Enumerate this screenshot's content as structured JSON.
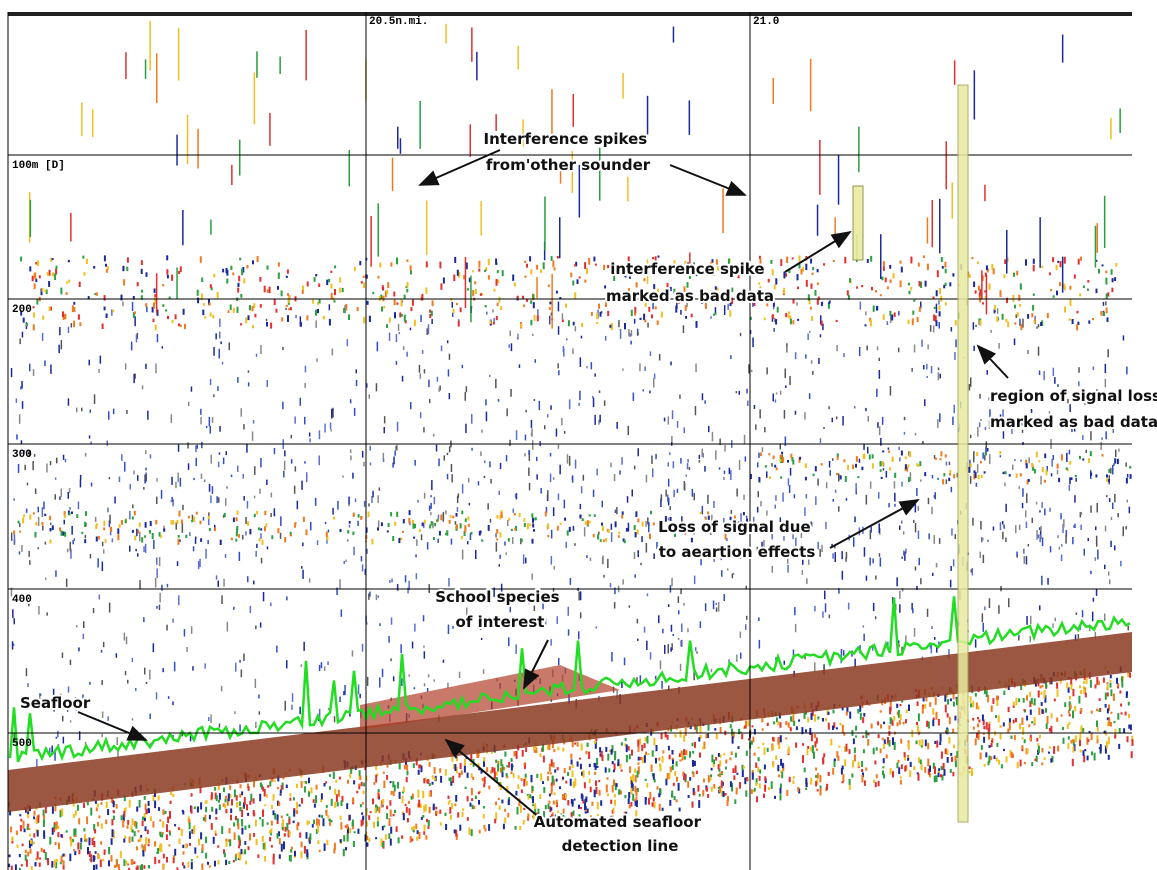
{
  "axis_labels": {
    "top": [
      "20.5n.mi.",
      "21.0"
    ],
    "depth": [
      "100m [D]",
      "200",
      "300",
      "400",
      "500"
    ]
  },
  "annotations": [
    {
      "lines": [
        "Interference spikes",
        "from'other sounder"
      ]
    },
    {
      "lines": [
        "interference spike",
        "marked as bad data"
      ]
    },
    {
      "lines": [
        "region of signal loss",
        "marked as bad data"
      ]
    },
    {
      "lines": [
        "Loss of signal due",
        "to aeartion effects"
      ]
    },
    {
      "lines": [
        "School species",
        "of interest"
      ]
    },
    {
      "lines": [
        "Seafloor"
      ]
    },
    {
      "lines": [
        "Automated seafloor",
        "detection line"
      ]
    }
  ]
}
